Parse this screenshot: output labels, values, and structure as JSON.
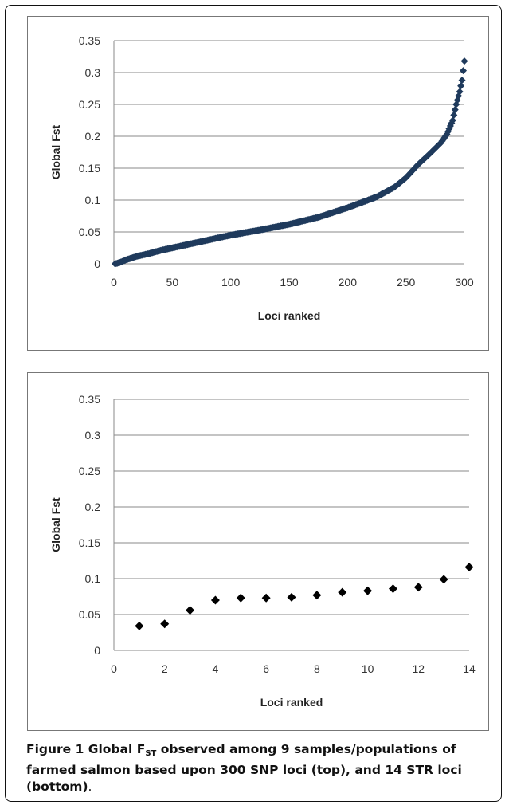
{
  "chart_data": [
    {
      "type": "scatter",
      "title": "",
      "xlabel": "Loci ranked",
      "ylabel": "Global Fst",
      "xlim": [
        0,
        300
      ],
      "ylim": [
        0,
        0.35
      ],
      "xticks": [
        "0",
        "50",
        "100",
        "150",
        "200",
        "250",
        "300"
      ],
      "yticks": [
        "0",
        "0.05",
        "0.1",
        "0.15",
        "0.2",
        "0.25",
        "0.3",
        "0.35"
      ],
      "grid": "horizontal",
      "marker": "diamond",
      "marker_color": "#1f3a5c",
      "curve": [
        [
          1,
          0.0
        ],
        [
          5,
          0.002
        ],
        [
          10,
          0.006
        ],
        [
          20,
          0.012
        ],
        [
          30,
          0.016
        ],
        [
          40,
          0.021
        ],
        [
          50,
          0.025
        ],
        [
          75,
          0.035
        ],
        [
          100,
          0.045
        ],
        [
          125,
          0.053
        ],
        [
          150,
          0.062
        ],
        [
          175,
          0.073
        ],
        [
          200,
          0.088
        ],
        [
          225,
          0.105
        ],
        [
          240,
          0.12
        ],
        [
          250,
          0.135
        ],
        [
          260,
          0.155
        ],
        [
          270,
          0.172
        ],
        [
          280,
          0.19
        ],
        [
          285,
          0.203
        ],
        [
          290,
          0.225
        ],
        [
          293,
          0.25
        ],
        [
          296,
          0.27
        ],
        [
          298,
          0.288
        ],
        [
          300,
          0.318
        ]
      ]
    },
    {
      "type": "scatter",
      "title": "",
      "xlabel": "Loci ranked",
      "ylabel": "Global Fst",
      "xlim": [
        0,
        14
      ],
      "ylim": [
        0,
        0.35
      ],
      "xticks": [
        "0",
        "2",
        "4",
        "6",
        "8",
        "10",
        "12",
        "14"
      ],
      "yticks": [
        "0",
        "0.05",
        "0.1",
        "0.15",
        "0.2",
        "0.25",
        "0.3",
        "0.35"
      ],
      "grid": "horizontal",
      "marker": "diamond",
      "marker_color": "#000000",
      "x": [
        1,
        2,
        3,
        4,
        5,
        6,
        7,
        8,
        9,
        10,
        11,
        12,
        13,
        14
      ],
      "y": [
        0.034,
        0.037,
        0.056,
        0.07,
        0.073,
        0.073,
        0.074,
        0.077,
        0.081,
        0.083,
        0.086,
        0.088,
        0.099,
        0.116
      ]
    }
  ],
  "caption": {
    "label": "Figure 1",
    "text_a": " Global F",
    "sub": "ST",
    "text_b": " observed among 9 samples/populations of farmed salmon based upon 300 SNP loci (top), and 14 STR loci (bottom)",
    "end": "."
  }
}
